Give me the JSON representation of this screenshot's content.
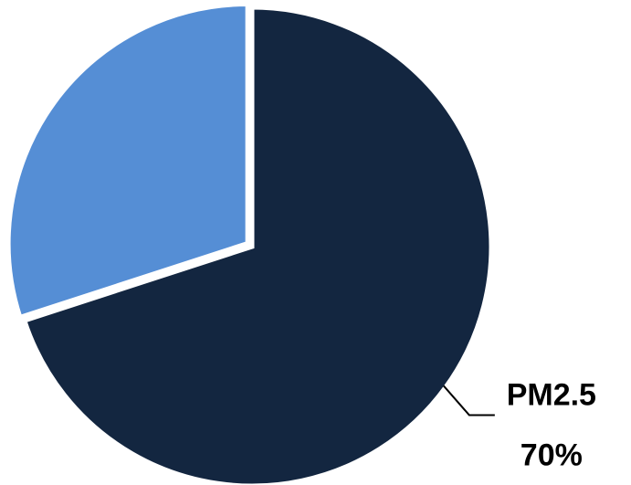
{
  "chart_data": {
    "type": "pie",
    "categories": [
      "PM2.5",
      null
    ],
    "values": [
      70,
      30
    ],
    "value_labels": [
      "70%",
      null
    ],
    "colors": [
      "#132640",
      "#558ed5"
    ]
  }
}
